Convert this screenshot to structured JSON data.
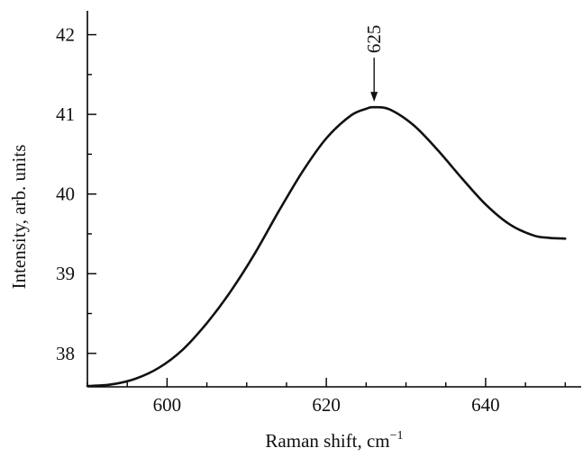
{
  "chart_data": {
    "type": "line",
    "title": "",
    "xlabel": "Raman shift, cm",
    "xlabel_superscript": "−1",
    "ylabel": "Intensity, arb. units",
    "xlim": [
      590,
      652
    ],
    "ylim": [
      37.58,
      42.3
    ],
    "x_ticks": [
      600,
      620,
      640
    ],
    "y_ticks": [
      38,
      39,
      40,
      41,
      42
    ],
    "grid": false,
    "legend": "none",
    "series": [
      {
        "x": [
          590,
          593,
          596,
          599,
          602,
          605,
          608,
          611,
          614,
          617,
          620,
          623,
          625,
          626,
          628,
          631,
          634,
          637,
          640,
          643,
          646,
          648,
          650
        ],
        "y": [
          37.59,
          37.61,
          37.68,
          37.82,
          38.05,
          38.38,
          38.78,
          39.25,
          39.78,
          40.28,
          40.7,
          40.98,
          41.07,
          41.09,
          41.06,
          40.86,
          40.55,
          40.2,
          39.87,
          39.62,
          39.48,
          39.45,
          39.44
        ]
      }
    ],
    "annotations": [
      {
        "text": "625",
        "x": 626,
        "y": 41.09
      }
    ]
  }
}
